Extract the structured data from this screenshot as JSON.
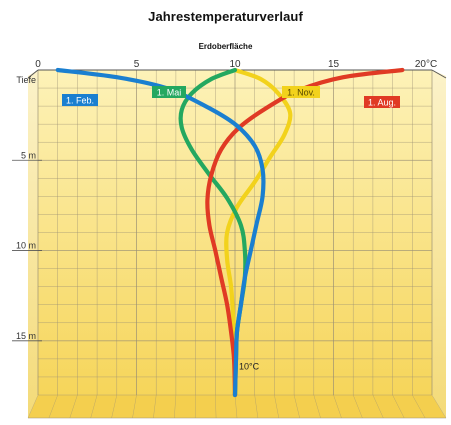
{
  "chart_data": {
    "type": "line",
    "title": "Jahrestemperaturverlauf",
    "subtitle": "Erdoberfläche",
    "xlabel_unit": "°C",
    "ylabel": "Tiefe",
    "y_unit": "m",
    "xlim": [
      0,
      20
    ],
    "ylim": [
      0,
      18
    ],
    "x_ticks": [
      "0",
      "5",
      "10",
      "15",
      "20°C"
    ],
    "y_ticks": [
      {
        "label": "5 m",
        "value": 5
      },
      {
        "label": "10 m",
        "value": 10
      },
      {
        "label": "15 m",
        "value": 15
      }
    ],
    "grid": true,
    "annotation": "10°C",
    "series": [
      {
        "name": "1. Feb.",
        "color": "#1a7fd0",
        "points": [
          [
            1,
            0
          ],
          [
            4,
            0.4
          ],
          [
            6.5,
            1.0
          ],
          [
            8.5,
            2.0
          ],
          [
            10,
            3.0
          ],
          [
            11,
            4.2
          ],
          [
            11.4,
            5.5
          ],
          [
            11.4,
            7
          ],
          [
            11.1,
            8.5
          ],
          [
            10.8,
            10
          ],
          [
            10.5,
            11.5
          ],
          [
            10.3,
            13
          ],
          [
            10.1,
            14.5
          ],
          [
            10.05,
            16
          ],
          [
            10,
            18
          ]
        ]
      },
      {
        "name": "1. Mai",
        "color": "#24a860",
        "points": [
          [
            10,
            0
          ],
          [
            8.8,
            0.5
          ],
          [
            7.8,
            1.3
          ],
          [
            7.3,
            2.2
          ],
          [
            7.3,
            3.2
          ],
          [
            7.8,
            4.4
          ],
          [
            8.7,
            5.8
          ],
          [
            9.6,
            7.1
          ],
          [
            10.3,
            8.6
          ],
          [
            10.5,
            10
          ],
          [
            10.5,
            11.5
          ],
          [
            10.3,
            13
          ],
          [
            10.1,
            14.5
          ],
          [
            10.05,
            16
          ],
          [
            10,
            18
          ]
        ]
      },
      {
        "name": "1. Nov.",
        "color": "#f2d21c",
        "points": [
          [
            10,
            0
          ],
          [
            11.3,
            0.5
          ],
          [
            12.2,
            1.3
          ],
          [
            12.8,
            2.4
          ],
          [
            12.5,
            3.6
          ],
          [
            11.8,
            4.8
          ],
          [
            11,
            6.2
          ],
          [
            10.1,
            7.6
          ],
          [
            9.6,
            9
          ],
          [
            9.6,
            10.5
          ],
          [
            9.8,
            12
          ],
          [
            9.9,
            13.5
          ],
          [
            10,
            15
          ],
          [
            10,
            16.5
          ],
          [
            10,
            18
          ]
        ]
      },
      {
        "name": "1. Aug.",
        "color": "#e03a24",
        "points": [
          [
            18.5,
            0
          ],
          [
            15.5,
            0.4
          ],
          [
            13.3,
            1.1
          ],
          [
            11.6,
            2.1
          ],
          [
            10.2,
            3.2
          ],
          [
            9.3,
            4.4
          ],
          [
            8.8,
            5.8
          ],
          [
            8.6,
            7.2
          ],
          [
            8.7,
            8.6
          ],
          [
            9,
            10
          ],
          [
            9.3,
            11.5
          ],
          [
            9.6,
            13
          ],
          [
            9.8,
            14.5
          ],
          [
            9.95,
            16
          ],
          [
            10,
            18
          ]
        ]
      }
    ]
  }
}
